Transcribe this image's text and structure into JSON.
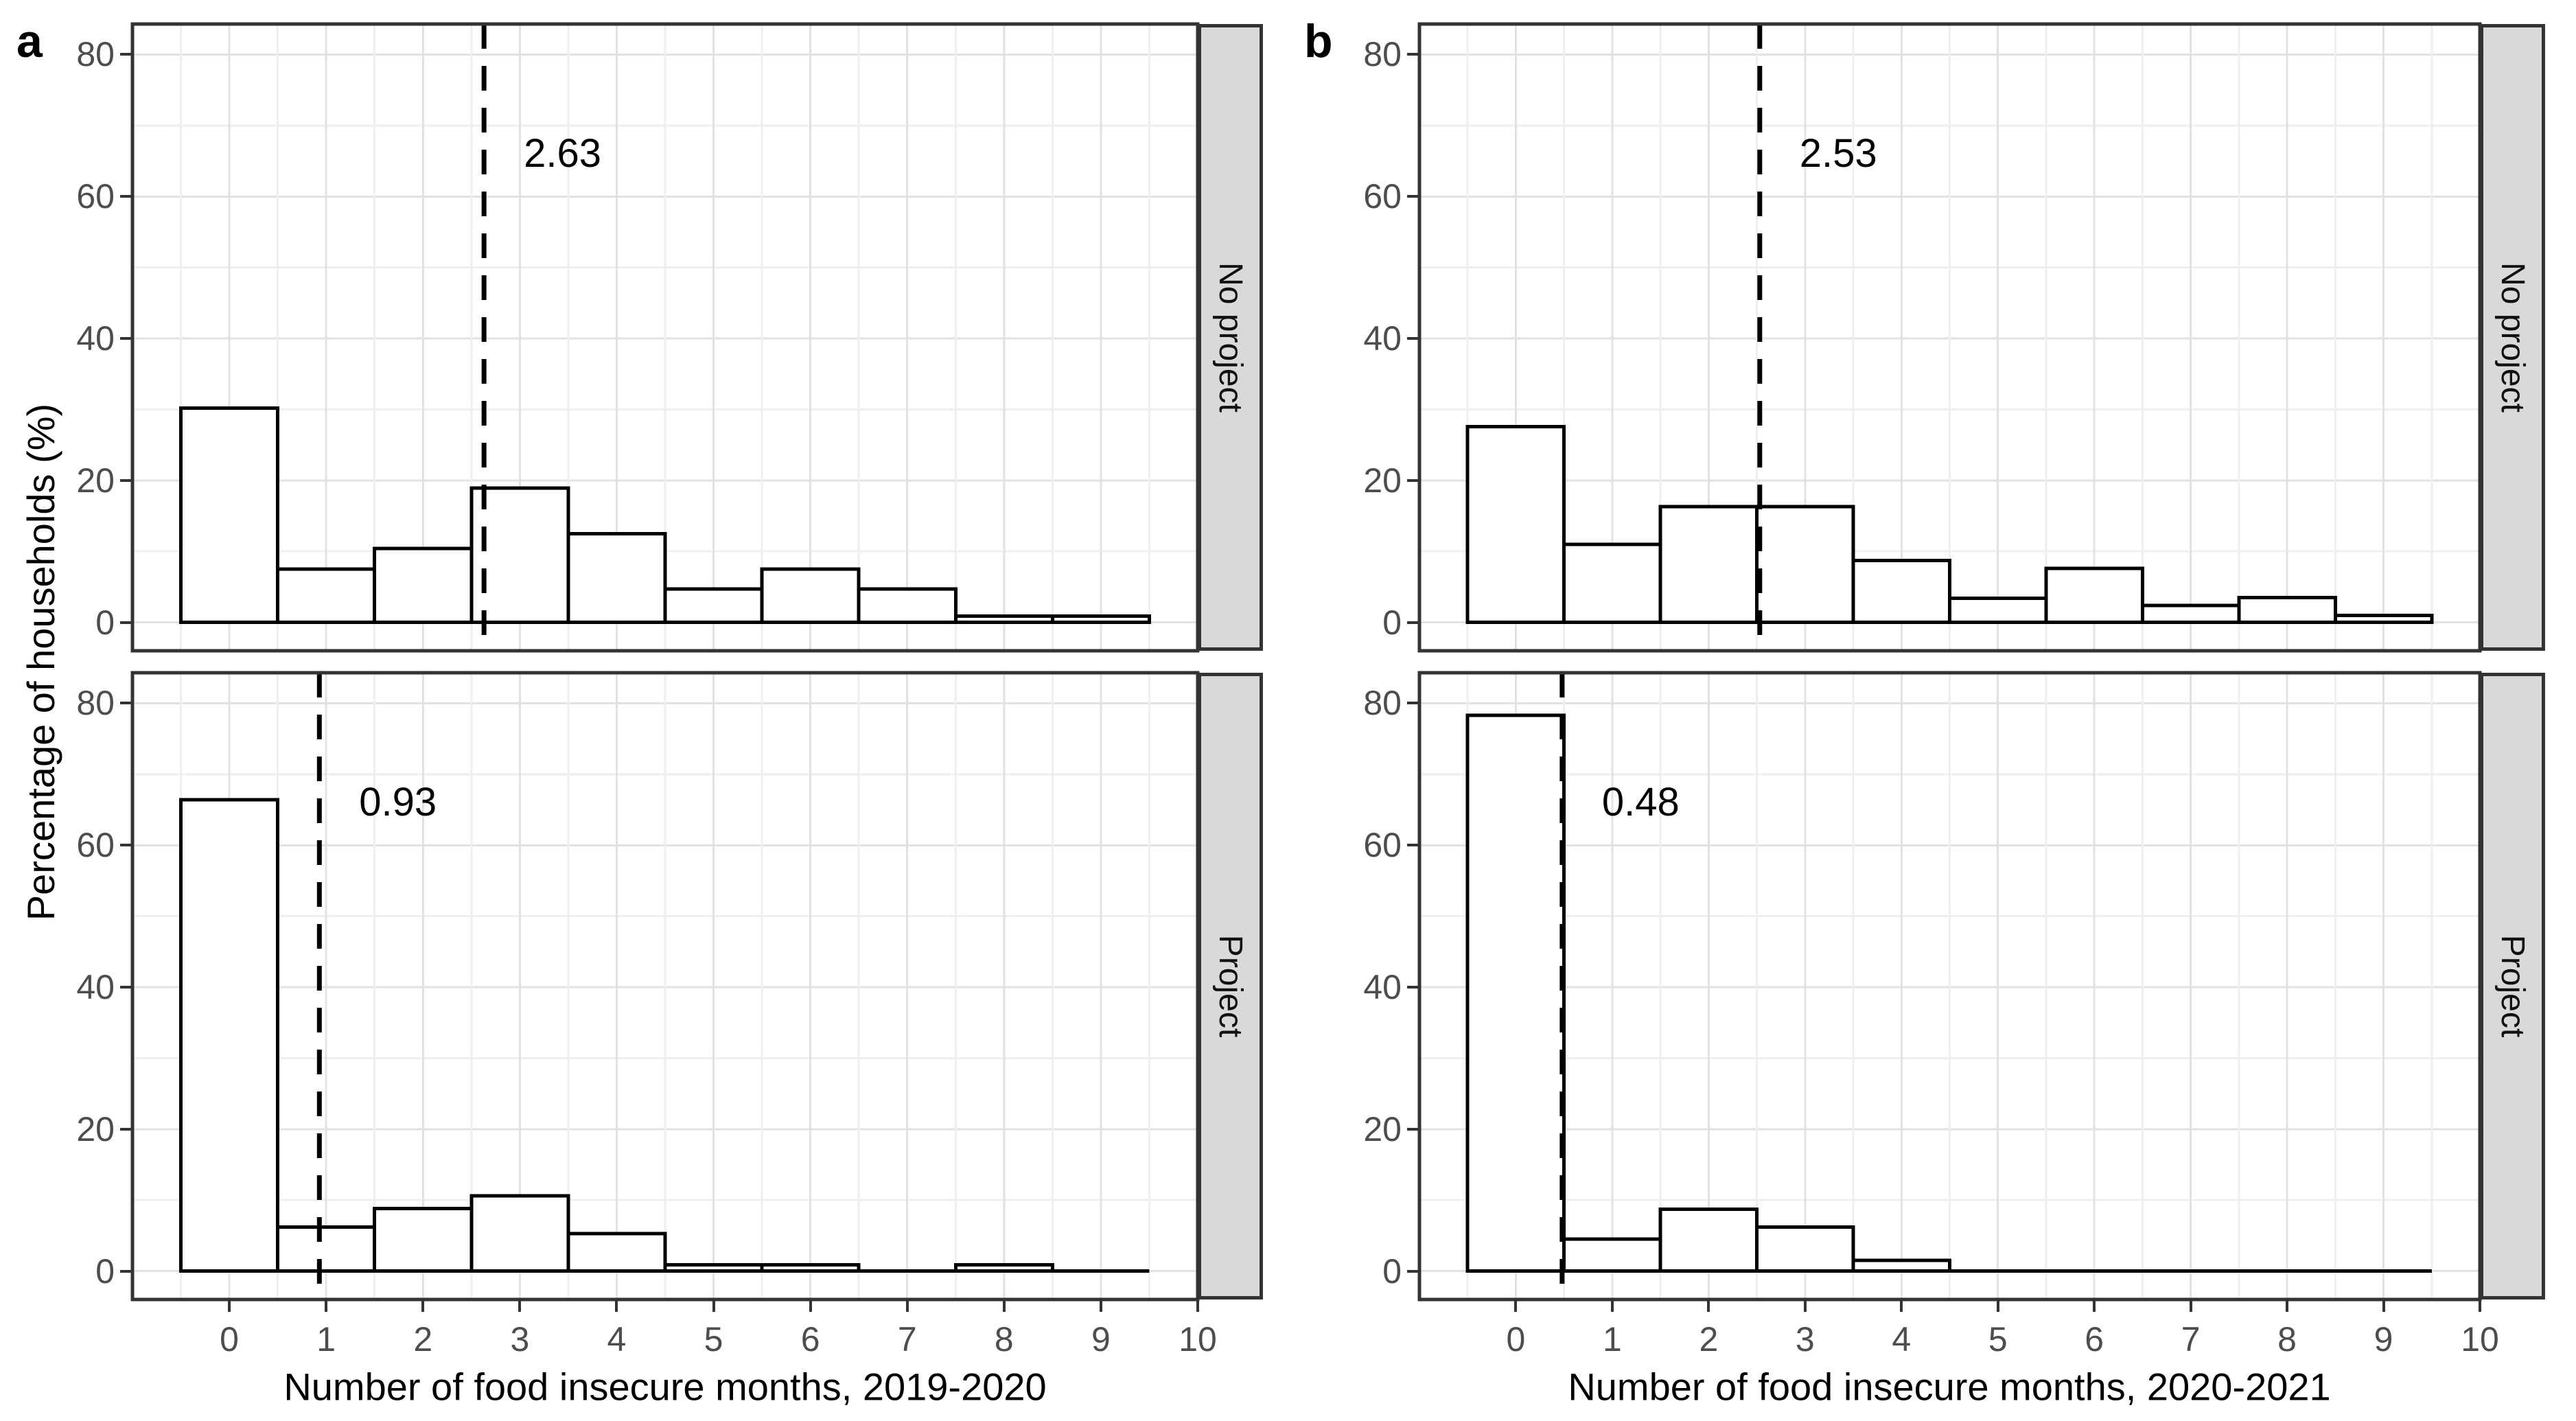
{
  "figure": {
    "y_axis_title": "Percentage of households (%)",
    "y_ticks": [
      "0",
      "20",
      "40",
      "60",
      "80"
    ],
    "x_ticks": [
      "0",
      "1",
      "2",
      "3",
      "4",
      "5",
      "6",
      "7",
      "8",
      "9",
      "10"
    ],
    "colors": {
      "background": "#ffffff",
      "panel_border": "#333333",
      "strip_background": "#d9d9d9",
      "bar_fill": "#ffffff",
      "bar_stroke": "#000000",
      "grid_major": "#e2e2e2",
      "grid_minor": "#efefef",
      "tick_label": "#4d4d4d",
      "mean_line": "#000000"
    }
  },
  "chart_data": [
    {
      "type": "bar",
      "subtype": "histogram",
      "panel_letter": "a",
      "xlabel": "Number of food insecure months, 2019-2020",
      "ylabel": "Percentage of households (%)",
      "categories": [
        0,
        1,
        2,
        3,
        4,
        5,
        6,
        7,
        8,
        9
      ],
      "bin_width": 1,
      "xlim": [
        -1,
        10
      ],
      "ylim": [
        -4,
        84.3
      ],
      "grid": true,
      "legend_position": "none",
      "series": [
        {
          "facet": "No project",
          "values": [
            30.2,
            7.5,
            10.4,
            18.9,
            12.5,
            4.7,
            7.5,
            4.7,
            0.9,
            0.9
          ],
          "mean": 2.63,
          "mean_label": "2.63"
        },
        {
          "facet": "Project",
          "values": [
            66.4,
            6.2,
            8.8,
            10.6,
            5.3,
            0.9,
            0.9,
            0,
            0.9,
            0
          ],
          "mean": 0.93,
          "mean_label": "0.93"
        }
      ]
    },
    {
      "type": "bar",
      "subtype": "histogram",
      "panel_letter": "b",
      "xlabel": "Number of food insecure months, 2020-2021",
      "ylabel": "Percentage of households (%)",
      "categories": [
        0,
        1,
        2,
        3,
        4,
        5,
        6,
        7,
        8,
        9
      ],
      "bin_width": 1,
      "xlim": [
        -1,
        10
      ],
      "ylim": [
        -4,
        84.3
      ],
      "grid": true,
      "legend_position": "none",
      "series": [
        {
          "facet": "No project",
          "values": [
            27.6,
            11.0,
            16.3,
            16.3,
            8.7,
            3.4,
            7.6,
            2.4,
            3.5,
            1.0
          ],
          "mean": 2.53,
          "mean_label": "2.53"
        },
        {
          "facet": "Project",
          "values": [
            78.3,
            4.5,
            8.7,
            6.2,
            1.5,
            0,
            0,
            0,
            0,
            0
          ],
          "mean": 0.48,
          "mean_label": "0.48"
        }
      ]
    }
  ]
}
